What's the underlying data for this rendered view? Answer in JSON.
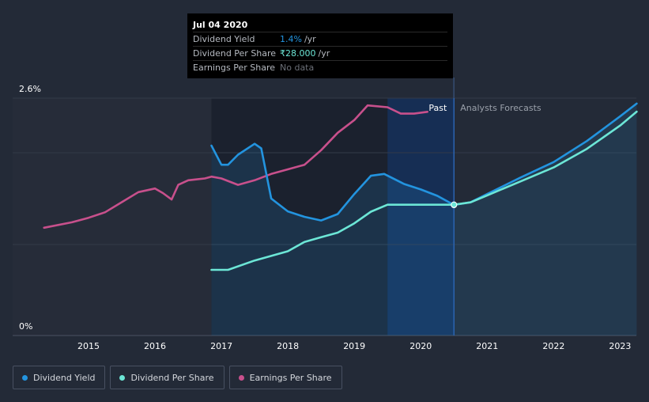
{
  "tooltip": {
    "date": "Jul 04 2020",
    "rows": [
      {
        "label": "Dividend Yield",
        "value": "1.4%",
        "unit": "/yr"
      },
      {
        "label": "Dividend Per Share",
        "value": "₹28.000",
        "unit": "/yr"
      },
      {
        "label": "Earnings Per Share",
        "value": "No data",
        "unit": ""
      }
    ]
  },
  "legend": [
    {
      "label": "Dividend Yield",
      "color": "#2394df"
    },
    {
      "label": "Dividend Per Share",
      "color": "#6ce6d6"
    },
    {
      "label": "Earnings Per Share",
      "color": "#c8508c"
    }
  ],
  "chart_data": {
    "type": "line",
    "y_axis": {
      "top_label": "2.6%",
      "bottom_label": "0%",
      "ylim": [
        0,
        2.6
      ]
    },
    "x_ticks": [
      "2015",
      "2016",
      "2017",
      "2018",
      "2019",
      "2020",
      "2021",
      "2022",
      "2023"
    ],
    "xlim": [
      2014.0,
      2023.25
    ],
    "past_label": "Past",
    "forecast_label": "Analysts Forecasts",
    "divider_x": 2020.5,
    "series": [
      {
        "name": "Earnings Per Share",
        "color": "#c8508c",
        "scale": "pct",
        "points": [
          [
            2014.33,
            1.18
          ],
          [
            2014.75,
            1.24
          ],
          [
            2015.0,
            1.29
          ],
          [
            2015.25,
            1.35
          ],
          [
            2015.5,
            1.46
          ],
          [
            2015.75,
            1.57
          ],
          [
            2016.0,
            1.61
          ],
          [
            2016.12,
            1.56
          ],
          [
            2016.25,
            1.49
          ],
          [
            2016.35,
            1.65
          ],
          [
            2016.5,
            1.7
          ],
          [
            2016.75,
            1.72
          ],
          [
            2016.85,
            1.74
          ],
          [
            2017.0,
            1.72
          ],
          [
            2017.25,
            1.65
          ],
          [
            2017.5,
            1.7
          ],
          [
            2017.75,
            1.77
          ],
          [
            2018.0,
            1.82
          ],
          [
            2018.25,
            1.87
          ],
          [
            2018.5,
            2.03
          ],
          [
            2018.75,
            2.22
          ],
          [
            2019.0,
            2.36
          ],
          [
            2019.2,
            2.52
          ],
          [
            2019.5,
            2.5
          ],
          [
            2019.7,
            2.43
          ],
          [
            2019.9,
            2.43
          ],
          [
            2020.1,
            2.45
          ]
        ]
      },
      {
        "name": "Dividend Yield",
        "color": "#2394df",
        "scale": "pct",
        "points": [
          [
            2016.85,
            2.08
          ],
          [
            2017.0,
            1.87
          ],
          [
            2017.1,
            1.87
          ],
          [
            2017.25,
            1.98
          ],
          [
            2017.5,
            2.1
          ],
          [
            2017.6,
            2.05
          ],
          [
            2017.75,
            1.5
          ],
          [
            2018.0,
            1.36
          ],
          [
            2018.25,
            1.3
          ],
          [
            2018.5,
            1.26
          ],
          [
            2018.75,
            1.33
          ],
          [
            2019.0,
            1.55
          ],
          [
            2019.25,
            1.75
          ],
          [
            2019.45,
            1.77
          ],
          [
            2019.75,
            1.66
          ],
          [
            2020.0,
            1.6
          ],
          [
            2020.25,
            1.53
          ],
          [
            2020.5,
            1.43
          ],
          [
            2020.75,
            1.46
          ],
          [
            2021.0,
            1.55
          ],
          [
            2021.5,
            1.73
          ],
          [
            2022.0,
            1.9
          ],
          [
            2022.5,
            2.13
          ],
          [
            2023.0,
            2.4
          ],
          [
            2023.25,
            2.54
          ]
        ]
      },
      {
        "name": "Dividend Per Share",
        "color": "#6ce6d6",
        "scale": "dps",
        "points": [
          [
            2016.85,
            14
          ],
          [
            2017.1,
            14
          ],
          [
            2017.5,
            16
          ],
          [
            2017.75,
            17
          ],
          [
            2018.0,
            18
          ],
          [
            2018.25,
            20
          ],
          [
            2018.5,
            21
          ],
          [
            2018.75,
            22
          ],
          [
            2019.0,
            24
          ],
          [
            2019.25,
            26.5
          ],
          [
            2019.5,
            28
          ],
          [
            2019.75,
            28
          ],
          [
            2020.0,
            28
          ],
          [
            2020.5,
            28
          ],
          [
            2020.75,
            28.5
          ],
          [
            2021.0,
            30
          ],
          [
            2021.5,
            33
          ],
          [
            2022.0,
            36
          ],
          [
            2022.5,
            40
          ],
          [
            2023.0,
            45
          ],
          [
            2023.25,
            48
          ]
        ]
      }
    ]
  }
}
